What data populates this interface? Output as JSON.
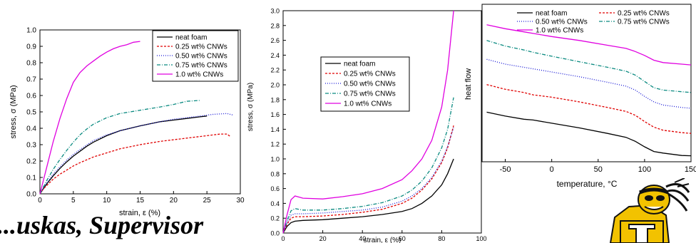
{
  "footer": {
    "text": "...uskas, Supervisor"
  },
  "logo": {
    "name": "yellow-jacket-mascot-logo",
    "colors": [
      "#f2c200",
      "#111111",
      "#ffffff"
    ]
  },
  "chart_data": [
    {
      "id": "chart1",
      "type": "line",
      "xlabel": "strain, ε (%)",
      "ylabel": "stress, σ (MPa)",
      "xlim": [
        0,
        30
      ],
      "ylim": [
        0,
        1.0
      ],
      "xticks": [
        0,
        5,
        10,
        15,
        20,
        25,
        30
      ],
      "yticks": [
        0,
        0.1,
        0.2,
        0.3,
        0.4,
        0.5,
        0.6,
        0.7,
        0.8,
        0.9,
        1.0
      ],
      "ytick_labels": [
        "0.0",
        "0.1",
        "0.2",
        "0.3",
        "0.4",
        "0.5",
        "0.6",
        "0.7",
        "0.8",
        "0.9",
        "1.0"
      ],
      "grid": false,
      "legend_position": "top-right",
      "series": [
        {
          "name": "neat foam",
          "color": "#000000",
          "dash": "",
          "x": [
            0,
            0.5,
            1,
            2,
            3,
            4,
            5,
            6,
            7,
            8,
            10,
            12,
            15,
            18,
            20,
            22,
            24,
            25
          ],
          "y": [
            0,
            0.03,
            0.06,
            0.11,
            0.155,
            0.195,
            0.23,
            0.26,
            0.29,
            0.315,
            0.355,
            0.385,
            0.415,
            0.44,
            0.45,
            0.46,
            0.47,
            0.475
          ]
        },
        {
          "name": "0.25 wt% CNWs",
          "color": "#e00000",
          "dash": "3,2",
          "x": [
            0,
            0.5,
            1,
            2,
            3,
            4,
            5,
            6,
            8,
            10,
            12,
            15,
            18,
            20,
            22,
            25,
            27,
            28,
            28.5
          ],
          "y": [
            0,
            0.03,
            0.05,
            0.09,
            0.12,
            0.145,
            0.17,
            0.19,
            0.225,
            0.25,
            0.275,
            0.3,
            0.32,
            0.33,
            0.34,
            0.355,
            0.365,
            0.365,
            0.35
          ]
        },
        {
          "name": "0.50 wt% CNWs",
          "color": "#1a1ad6",
          "dash": "1,2",
          "x": [
            0,
            0.5,
            1,
            2,
            3,
            4,
            5,
            6,
            8,
            10,
            12,
            15,
            18,
            20,
            22,
            24,
            26,
            28,
            29
          ],
          "y": [
            0,
            0.035,
            0.065,
            0.12,
            0.165,
            0.205,
            0.24,
            0.27,
            0.325,
            0.36,
            0.385,
            0.415,
            0.44,
            0.455,
            0.465,
            0.475,
            0.485,
            0.49,
            0.48
          ]
        },
        {
          "name": "0.75 wt% CNWs",
          "color": "#0a8a80",
          "dash": "5,2,1,2",
          "x": [
            0,
            0.5,
            1,
            2,
            3,
            4,
            5,
            6,
            7,
            8,
            10,
            12,
            15,
            18,
            20,
            22,
            24
          ],
          "y": [
            0,
            0.04,
            0.08,
            0.15,
            0.21,
            0.265,
            0.315,
            0.36,
            0.395,
            0.425,
            0.465,
            0.49,
            0.51,
            0.53,
            0.545,
            0.565,
            0.57
          ]
        },
        {
          "name": "1.0 wt% CNWs",
          "color": "#e000e0",
          "dash": "",
          "x": [
            0,
            0.5,
            1,
            2,
            3,
            4,
            5,
            6,
            7,
            8,
            9,
            10,
            11,
            12,
            13,
            14,
            15
          ],
          "y": [
            0,
            0.08,
            0.16,
            0.32,
            0.46,
            0.58,
            0.68,
            0.74,
            0.78,
            0.81,
            0.84,
            0.865,
            0.885,
            0.9,
            0.91,
            0.925,
            0.93
          ]
        }
      ]
    },
    {
      "id": "chart2",
      "type": "line",
      "xlabel": "strain, ε (%)",
      "ylabel": "stress, σ (MPa)",
      "xlim": [
        0,
        100
      ],
      "ylim": [
        0,
        3.0
      ],
      "xticks": [
        0,
        20,
        40,
        60,
        80,
        100
      ],
      "yticks": [
        0,
        0.2,
        0.4,
        0.6,
        0.8,
        1.0,
        1.2,
        1.4,
        1.6,
        1.8,
        2.0,
        2.2,
        2.4,
        2.6,
        2.8,
        3.0
      ],
      "ytick_labels": [
        "0.0",
        "0.2",
        "0.4",
        "0.6",
        "0.8",
        "1.0",
        "1.2",
        "1.4",
        "1.6",
        "1.8",
        "2.0",
        "2.2",
        "2.4",
        "2.6",
        "2.8",
        "3.0"
      ],
      "grid": false,
      "legend_position": "center-left",
      "series": [
        {
          "name": "neat foam",
          "color": "#000000",
          "dash": "",
          "x": [
            0,
            2,
            4,
            6,
            10,
            20,
            30,
            40,
            50,
            60,
            65,
            70,
            75,
            80,
            83,
            86
          ],
          "y": [
            0,
            0.09,
            0.14,
            0.16,
            0.17,
            0.18,
            0.2,
            0.22,
            0.25,
            0.29,
            0.33,
            0.4,
            0.5,
            0.65,
            0.8,
            1.0
          ]
        },
        {
          "name": "0.25 wt% CNWs",
          "color": "#e00000",
          "dash": "3,2",
          "x": [
            0,
            2,
            4,
            6,
            10,
            20,
            30,
            40,
            50,
            60,
            65,
            70,
            75,
            80,
            83,
            86
          ],
          "y": [
            0,
            0.12,
            0.2,
            0.22,
            0.22,
            0.23,
            0.25,
            0.28,
            0.32,
            0.4,
            0.47,
            0.58,
            0.73,
            0.95,
            1.15,
            1.45
          ]
        },
        {
          "name": "0.50 wt% CNWs",
          "color": "#1a1ad6",
          "dash": "1,2",
          "x": [
            0,
            2,
            4,
            6,
            10,
            20,
            30,
            40,
            50,
            60,
            65,
            70,
            75,
            80,
            83,
            86
          ],
          "y": [
            0,
            0.14,
            0.24,
            0.26,
            0.26,
            0.27,
            0.29,
            0.31,
            0.35,
            0.43,
            0.5,
            0.6,
            0.75,
            0.97,
            1.17,
            1.42
          ]
        },
        {
          "name": "0.75 wt% CNWs",
          "color": "#0a8a80",
          "dash": "5,2,1,2",
          "x": [
            0,
            2,
            4,
            6,
            10,
            20,
            30,
            40,
            50,
            60,
            65,
            70,
            75,
            80,
            83,
            86
          ],
          "y": [
            0,
            0.17,
            0.3,
            0.33,
            0.31,
            0.31,
            0.33,
            0.36,
            0.41,
            0.5,
            0.58,
            0.7,
            0.88,
            1.15,
            1.4,
            1.83
          ]
        },
        {
          "name": "1.0 wt% CNWs",
          "color": "#e000e0",
          "dash": "",
          "x": [
            0,
            2,
            4,
            6,
            10,
            20,
            30,
            40,
            50,
            60,
            65,
            70,
            75,
            80,
            83,
            86
          ],
          "y": [
            0,
            0.25,
            0.45,
            0.5,
            0.47,
            0.46,
            0.49,
            0.53,
            0.6,
            0.72,
            0.84,
            1.0,
            1.25,
            1.7,
            2.2,
            3.0
          ]
        }
      ]
    },
    {
      "id": "chart3",
      "type": "line",
      "xlabel": "temperature, °C",
      "ylabel": "heat flow",
      "xlim": [
        -75,
        150
      ],
      "ylim": [
        0,
        10
      ],
      "xticks": [
        -50,
        0,
        50,
        100,
        150
      ],
      "ytick_labels": [],
      "grid": false,
      "legend_position": "top-right",
      "series": [
        {
          "name": "neat foam",
          "color": "#000000",
          "dash": "",
          "x": [
            -70,
            -50,
            -30,
            -20,
            0,
            30,
            60,
            80,
            90,
            100,
            110,
            120,
            140,
            150
          ],
          "y": [
            3.15,
            2.9,
            2.7,
            2.65,
            2.45,
            2.15,
            1.8,
            1.55,
            1.3,
            0.95,
            0.65,
            0.55,
            0.4,
            0.38
          ]
        },
        {
          "name": "0.25 wt% CNWs",
          "color": "#e00000",
          "dash": "3,2",
          "x": [
            -70,
            -50,
            -30,
            -20,
            0,
            30,
            60,
            80,
            90,
            100,
            110,
            120,
            140,
            150
          ],
          "y": [
            4.9,
            4.6,
            4.4,
            4.25,
            4.1,
            3.8,
            3.45,
            3.2,
            2.95,
            2.55,
            2.2,
            2.0,
            1.85,
            1.8
          ]
        },
        {
          "name": "0.50 wt% CNWs",
          "color": "#1a1ad6",
          "dash": "1,2",
          "x": [
            -70,
            -50,
            -30,
            -20,
            0,
            30,
            60,
            80,
            90,
            100,
            110,
            120,
            140,
            150
          ],
          "y": [
            6.5,
            6.2,
            6.0,
            5.9,
            5.7,
            5.4,
            5.05,
            4.8,
            4.55,
            4.15,
            3.8,
            3.6,
            3.45,
            3.4
          ]
        },
        {
          "name": "0.75 wt% CNWs",
          "color": "#0a8a80",
          "dash": "5,2,1,2",
          "x": [
            -70,
            -50,
            -30,
            -20,
            0,
            30,
            60,
            80,
            90,
            100,
            110,
            120,
            140,
            150
          ],
          "y": [
            7.7,
            7.35,
            7.1,
            6.95,
            6.7,
            6.35,
            6.0,
            5.75,
            5.5,
            5.1,
            4.7,
            4.55,
            4.45,
            4.4
          ]
        },
        {
          "name": "1.0 wt% CNWs",
          "color": "#e000e0",
          "dash": "",
          "x": [
            -70,
            -50,
            -30,
            -20,
            0,
            30,
            60,
            80,
            90,
            100,
            110,
            120,
            140,
            150
          ],
          "y": [
            8.7,
            8.45,
            8.25,
            8.15,
            7.95,
            7.7,
            7.4,
            7.2,
            7.0,
            6.75,
            6.45,
            6.3,
            6.2,
            6.15
          ]
        }
      ]
    }
  ]
}
